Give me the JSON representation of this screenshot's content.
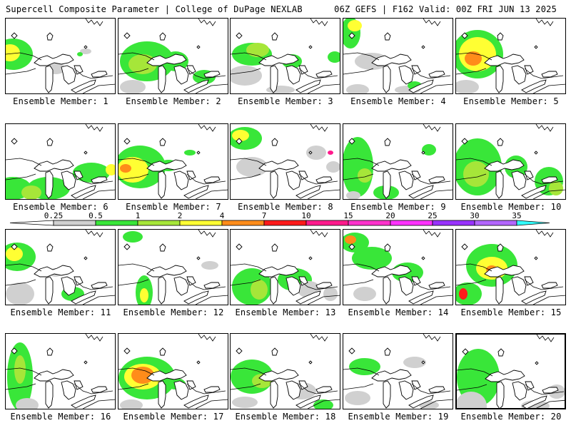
{
  "header": {
    "title": "Supercell Composite Parameter | College of DuPage NEXLAB",
    "run_info": "06Z GEFS | F162 Valid: 00Z FRI JUN 13 2025"
  },
  "legend": {
    "levels": [
      "0.25",
      "0.5",
      "1",
      "2",
      "4",
      "7",
      "10",
      "15",
      "20",
      "25",
      "30",
      "35"
    ],
    "colors": [
      "#d0d0d0",
      "#39e639",
      "#a6e639",
      "#ffff33",
      "#ff8c1a",
      "#ff1a1a",
      "#ff1a8c",
      "#ff33cc",
      "#ff33ff",
      "#9933ff",
      "#b366ff",
      "#33ffff"
    ]
  },
  "members": [
    {
      "label": "Ensemble Member: 1"
    },
    {
      "label": "Ensemble Member: 2"
    },
    {
      "label": "Ensemble Member: 3"
    },
    {
      "label": "Ensemble Member: 4"
    },
    {
      "label": "Ensemble Member: 5"
    },
    {
      "label": "Ensemble Member: 6"
    },
    {
      "label": "Ensemble Member: 7"
    },
    {
      "label": "Ensemble Member: 8"
    },
    {
      "label": "Ensemble Member: 9"
    },
    {
      "label": "Ensemble Member: 10"
    },
    {
      "label": "Ensemble Member: 11"
    },
    {
      "label": "Ensemble Member: 12"
    },
    {
      "label": "Ensemble Member: 13"
    },
    {
      "label": "Ensemble Member: 14"
    },
    {
      "label": "Ensemble Member: 15"
    },
    {
      "label": "Ensemble Member: 16"
    },
    {
      "label": "Ensemble Member: 17"
    },
    {
      "label": "Ensemble Member: 18"
    },
    {
      "label": "Ensemble Member: 19"
    },
    {
      "label": "Ensemble Member: 20"
    }
  ]
}
